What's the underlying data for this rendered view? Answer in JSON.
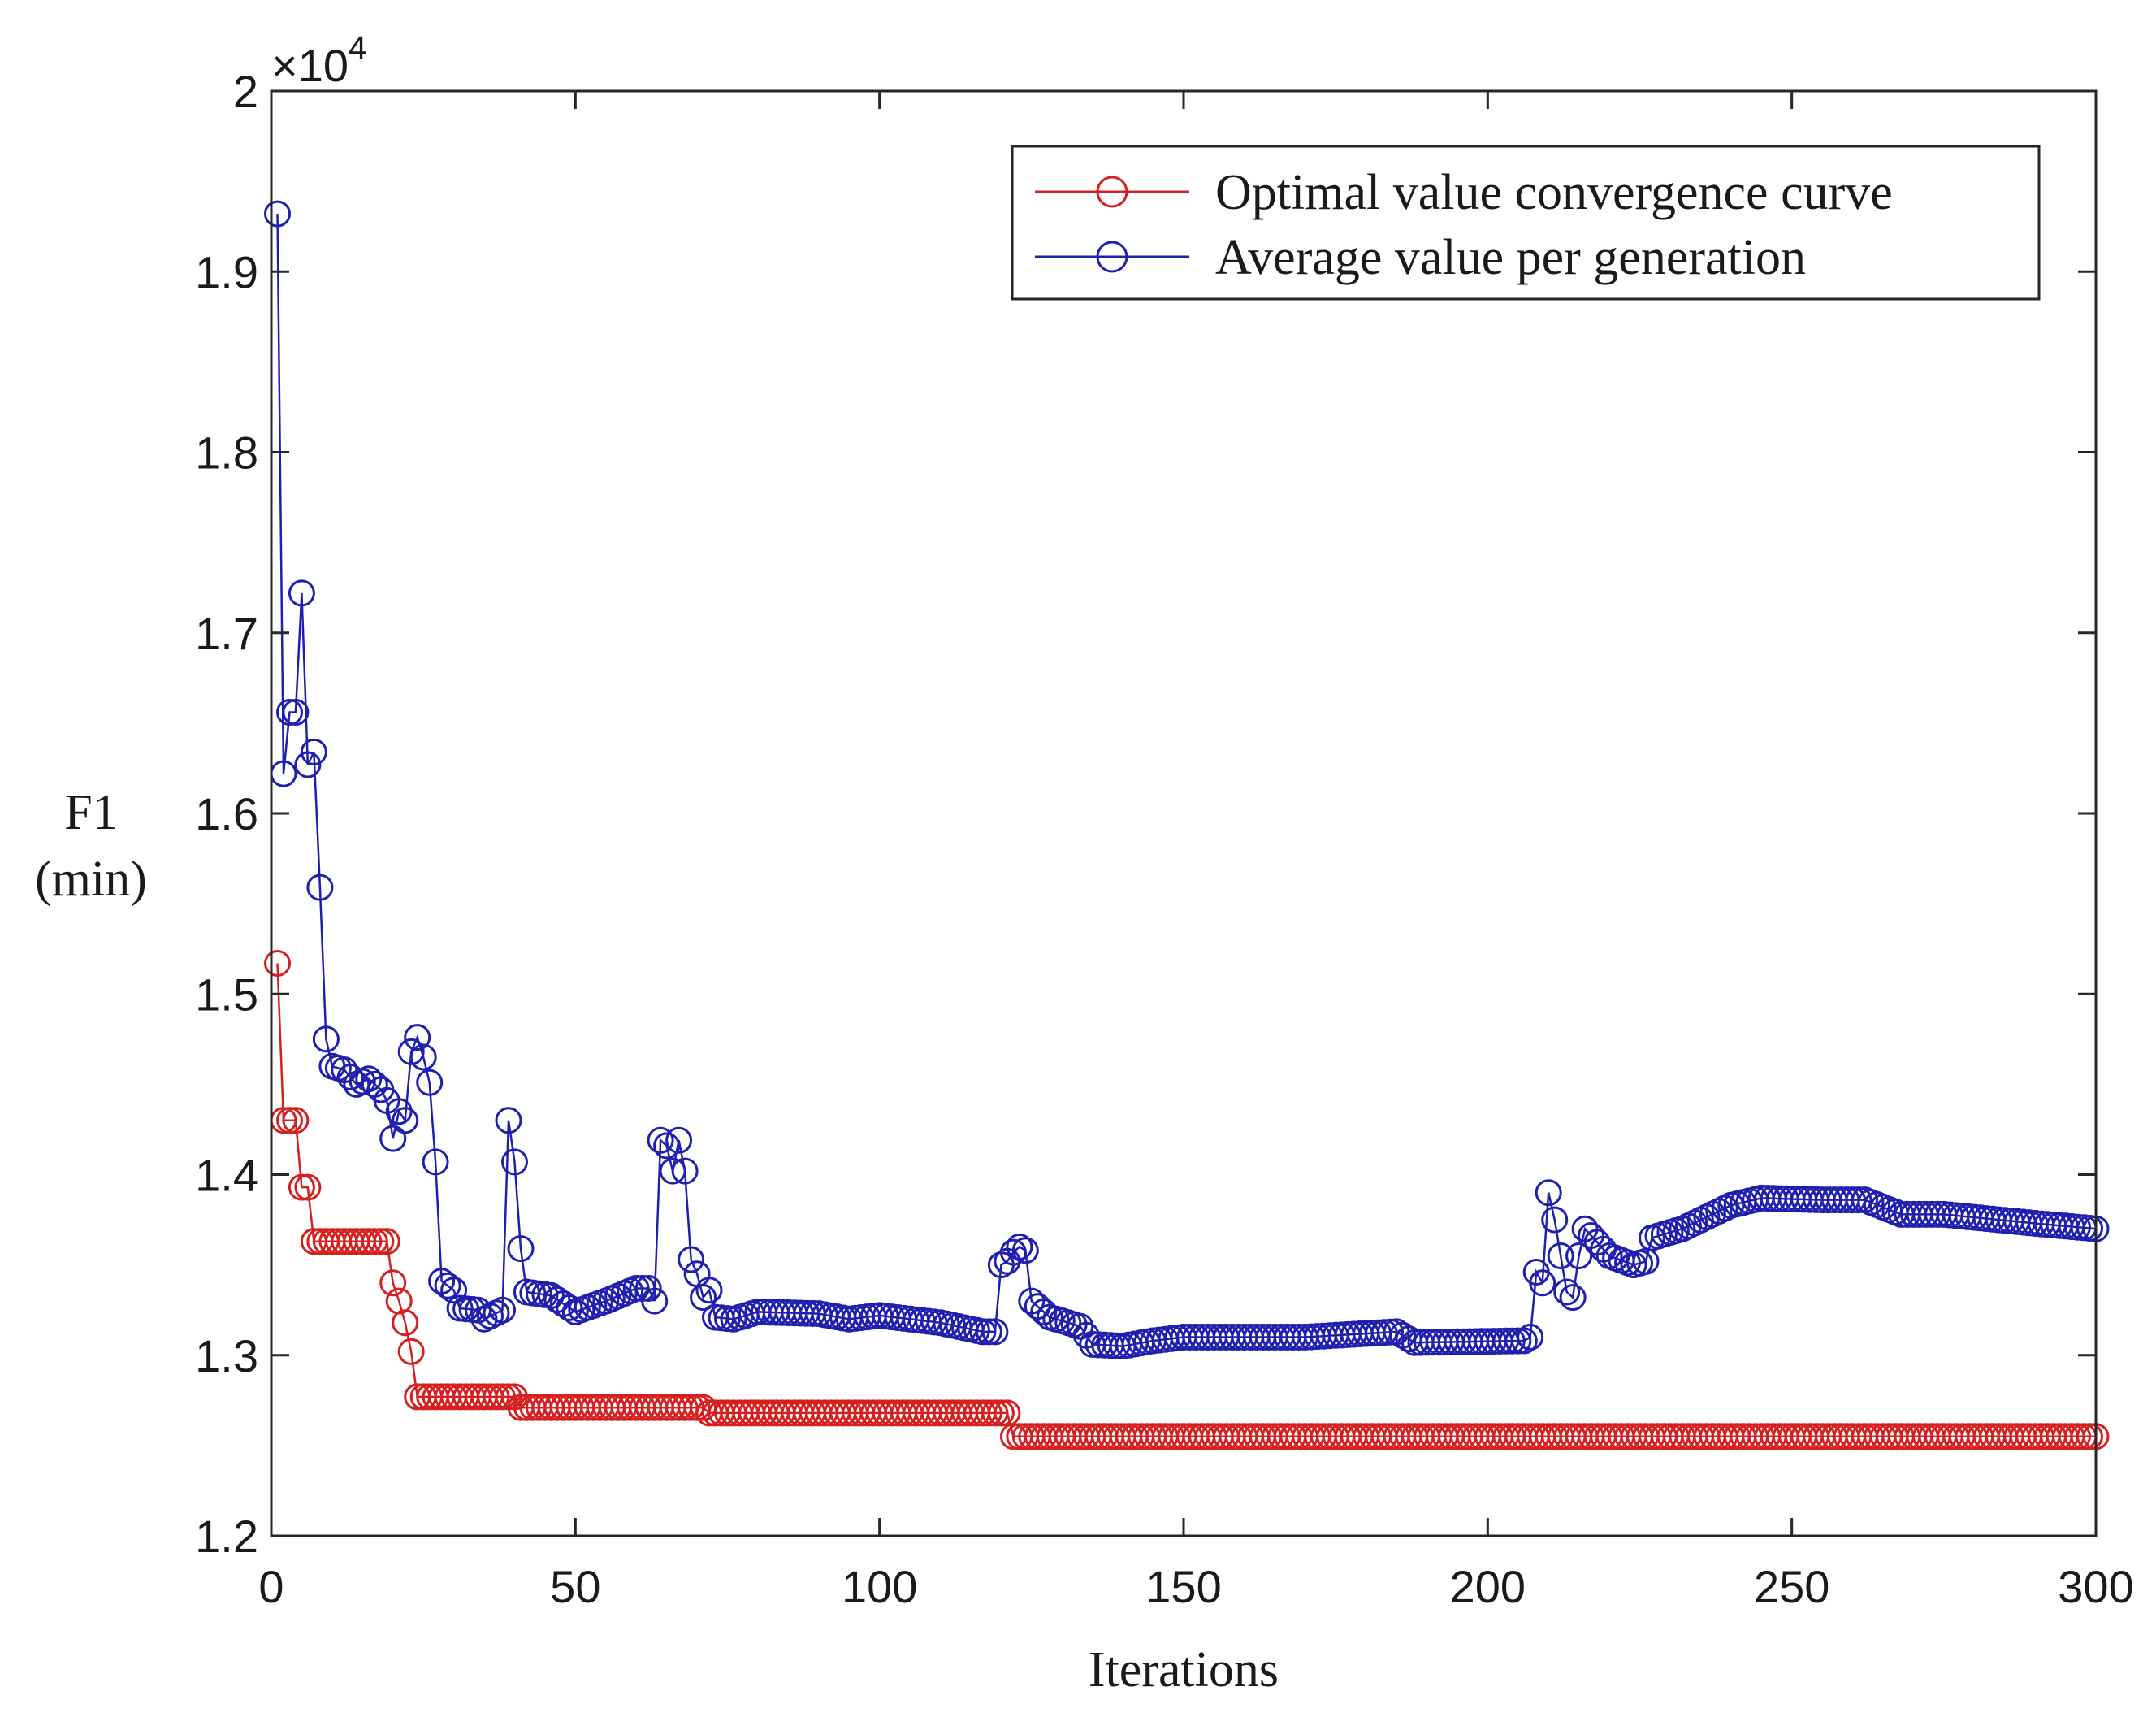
{
  "chart_data": {
    "type": "line",
    "xlabel": "Iterations",
    "ylabel_lines": [
      "F1",
      "(min)"
    ],
    "y_exponent": {
      "base": "×10",
      "power": "4"
    },
    "xlim": [
      0,
      300
    ],
    "ylim": [
      1.2,
      2.0
    ],
    "x_ticks": [
      0,
      50,
      100,
      150,
      200,
      250,
      300
    ],
    "x_tick_labels": [
      "0",
      "50",
      "100",
      "150",
      "200",
      "250",
      "300"
    ],
    "y_ticks": [
      1.2,
      1.3,
      1.4,
      1.5,
      1.6,
      1.7,
      1.8,
      1.9,
      2.0
    ],
    "y_tick_labels": [
      "1.2",
      "1.3",
      "1.4",
      "1.5",
      "1.6",
      "1.7",
      "1.8",
      "1.9",
      "2"
    ],
    "legend_position": "top-right",
    "marker": "open-circle",
    "grid": false,
    "series": [
      {
        "name": "Optimal value convergence curve",
        "color": "#d62020",
        "breakpoints": [
          [
            1,
            1.517
          ],
          [
            2,
            1.43
          ],
          [
            3,
            1.43
          ],
          [
            4,
            1.43
          ],
          [
            5,
            1.393
          ],
          [
            6,
            1.393
          ],
          [
            7,
            1.363
          ],
          [
            19,
            1.363
          ],
          [
            20,
            1.34
          ],
          [
            21,
            1.33
          ],
          [
            22,
            1.318
          ],
          [
            23,
            1.302
          ],
          [
            24,
            1.277
          ],
          [
            40,
            1.277
          ],
          [
            41,
            1.271
          ],
          [
            71,
            1.271
          ],
          [
            72,
            1.268
          ],
          [
            121,
            1.268
          ],
          [
            122,
            1.255
          ],
          [
            300,
            1.255
          ]
        ]
      },
      {
        "name": "Average value per generation",
        "color": "#1f1fb0",
        "breakpoints": [
          [
            1,
            1.932
          ],
          [
            2,
            1.622
          ],
          [
            3,
            1.656
          ],
          [
            4,
            1.656
          ],
          [
            5,
            1.722
          ],
          [
            6,
            1.627
          ],
          [
            7,
            1.634
          ],
          [
            8,
            1.559
          ],
          [
            9,
            1.475
          ],
          [
            10,
            1.46
          ],
          [
            12,
            1.458
          ],
          [
            14,
            1.45
          ],
          [
            16,
            1.453
          ],
          [
            18,
            1.447
          ],
          [
            19,
            1.441
          ],
          [
            20,
            1.42
          ],
          [
            21,
            1.435
          ],
          [
            22,
            1.43
          ],
          [
            23,
            1.468
          ],
          [
            24,
            1.476
          ],
          [
            25,
            1.465
          ],
          [
            26,
            1.451
          ],
          [
            27,
            1.407
          ],
          [
            28,
            1.341
          ],
          [
            30,
            1.336
          ],
          [
            31,
            1.326
          ],
          [
            34,
            1.325
          ],
          [
            35,
            1.32
          ],
          [
            38,
            1.325
          ],
          [
            39,
            1.43
          ],
          [
            40,
            1.407
          ],
          [
            41,
            1.359
          ],
          [
            42,
            1.335
          ],
          [
            46,
            1.333
          ],
          [
            50,
            1.324
          ],
          [
            55,
            1.33
          ],
          [
            60,
            1.337
          ],
          [
            62,
            1.337
          ],
          [
            63,
            1.33
          ],
          [
            64,
            1.419
          ],
          [
            65,
            1.416
          ],
          [
            66,
            1.402
          ],
          [
            67,
            1.419
          ],
          [
            68,
            1.402
          ],
          [
            69,
            1.353
          ],
          [
            70,
            1.345
          ],
          [
            71,
            1.332
          ],
          [
            72,
            1.336
          ],
          [
            73,
            1.321
          ],
          [
            76,
            1.32
          ],
          [
            80,
            1.324
          ],
          [
            90,
            1.323
          ],
          [
            95,
            1.32
          ],
          [
            100,
            1.322
          ],
          [
            110,
            1.318
          ],
          [
            117,
            1.313
          ],
          [
            118,
            1.313
          ],
          [
            119,
            1.313
          ],
          [
            120,
            1.35
          ],
          [
            121,
            1.352
          ],
          [
            122,
            1.357
          ],
          [
            123,
            1.36
          ],
          [
            124,
            1.358
          ],
          [
            125,
            1.33
          ],
          [
            126,
            1.327
          ],
          [
            128,
            1.321
          ],
          [
            133,
            1.316
          ],
          [
            135,
            1.306
          ],
          [
            140,
            1.305
          ],
          [
            145,
            1.308
          ],
          [
            150,
            1.31
          ],
          [
            170,
            1.31
          ],
          [
            185,
            1.313
          ],
          [
            188,
            1.307
          ],
          [
            206,
            1.308
          ],
          [
            207,
            1.31
          ],
          [
            208,
            1.346
          ],
          [
            209,
            1.34
          ],
          [
            210,
            1.39
          ],
          [
            211,
            1.375
          ],
          [
            212,
            1.355
          ],
          [
            213,
            1.335
          ],
          [
            214,
            1.332
          ],
          [
            215,
            1.355
          ],
          [
            216,
            1.37
          ],
          [
            220,
            1.355
          ],
          [
            224,
            1.35
          ],
          [
            226,
            1.352
          ],
          [
            227,
            1.365
          ],
          [
            232,
            1.37
          ],
          [
            240,
            1.383
          ],
          [
            245,
            1.387
          ],
          [
            255,
            1.386
          ],
          [
            262,
            1.386
          ],
          [
            268,
            1.378
          ],
          [
            275,
            1.378
          ],
          [
            290,
            1.373
          ],
          [
            300,
            1.37
          ]
        ]
      }
    ]
  }
}
